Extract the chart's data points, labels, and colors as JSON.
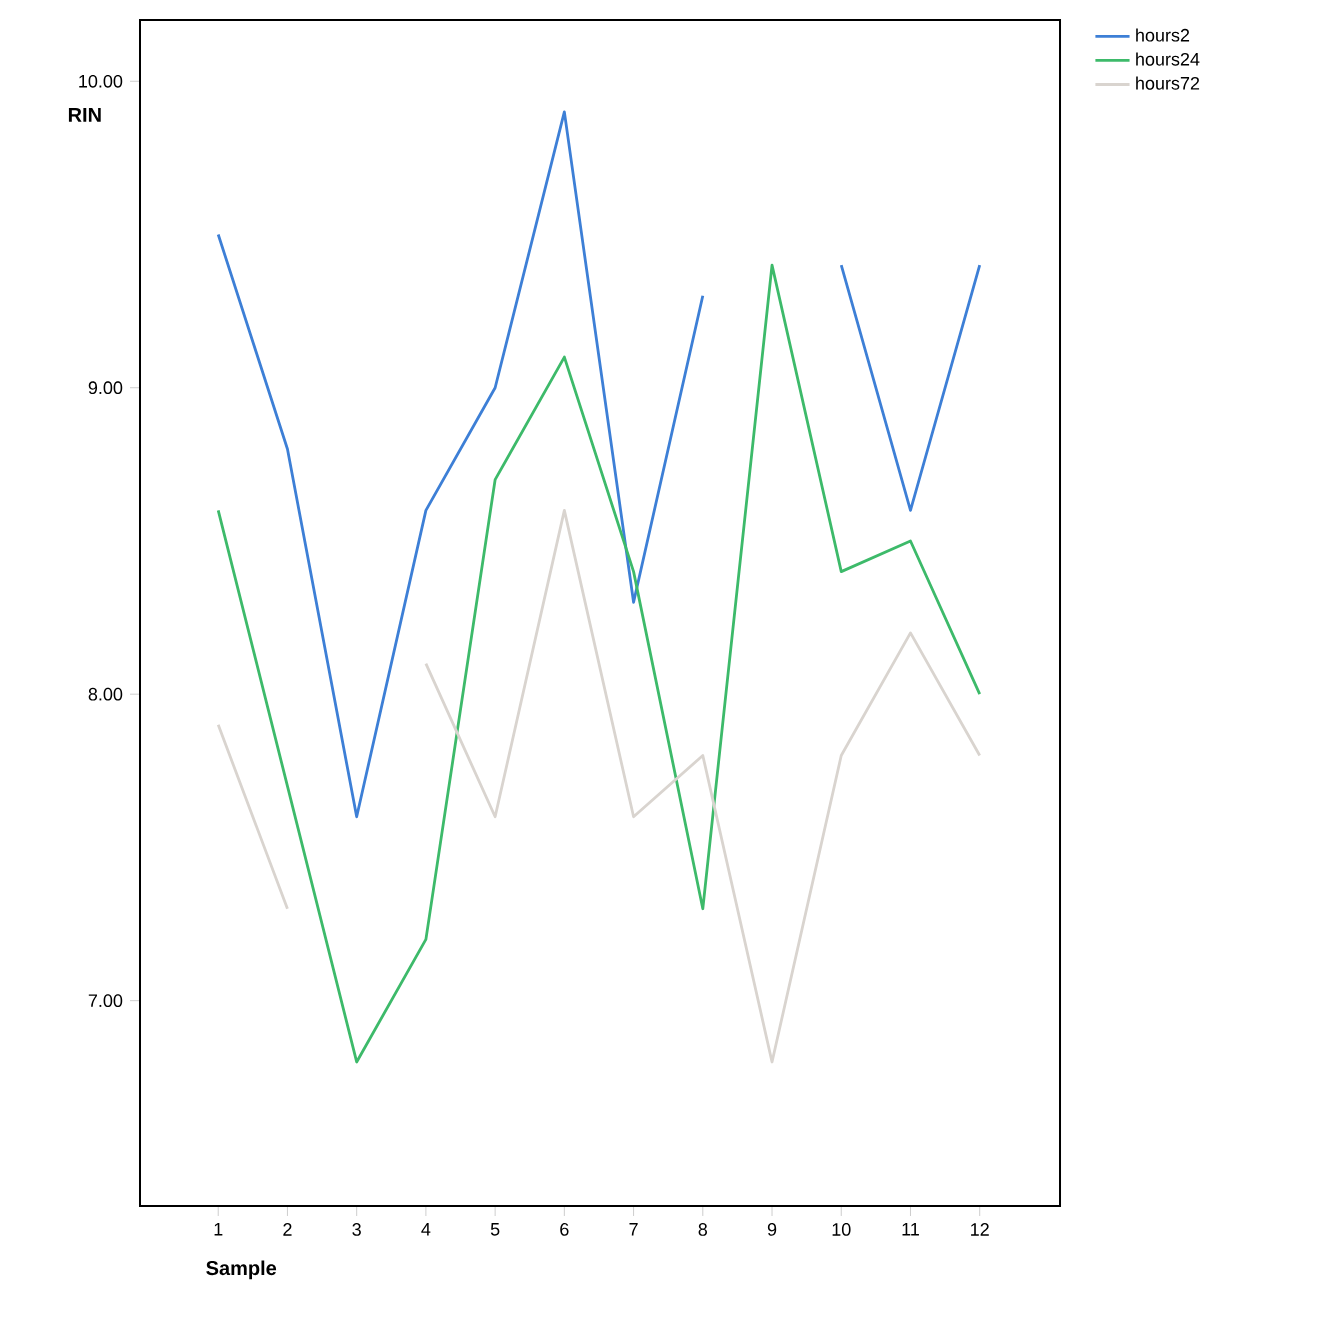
{
  "chart_data": {
    "type": "line",
    "xlabel": "Sample",
    "ylabel": "RIN",
    "categories": [
      "1",
      "2",
      "3",
      "4",
      "5",
      "6",
      "7",
      "8",
      "9",
      "10",
      "11",
      "12"
    ],
    "series": [
      {
        "name": "hours2",
        "color": "#3d7fd6",
        "values": [
          9.5,
          8.8,
          7.6,
          8.6,
          9.0,
          9.9,
          8.3,
          9.3,
          null,
          9.4,
          8.6,
          9.4
        ]
      },
      {
        "name": "hours24",
        "color": "#3dba6a",
        "values": [
          8.6,
          7.7,
          6.8,
          7.2,
          8.7,
          9.1,
          8.4,
          7.3,
          9.4,
          8.4,
          8.5,
          8.0
        ]
      },
      {
        "name": "hours72",
        "color": "#d9d4cf",
        "values": [
          7.9,
          7.3,
          null,
          8.1,
          7.6,
          8.6,
          7.6,
          7.8,
          6.8,
          7.8,
          8.2,
          7.8
        ]
      }
    ],
    "ylim": [
      6.33,
      10.2
    ],
    "yticks": [
      {
        "value": 7,
        "label": "7.00"
      },
      {
        "value": 8,
        "label": "8.00"
      },
      {
        "value": 9,
        "label": "9.00"
      },
      {
        "value": 10,
        "label": "10.00"
      }
    ],
    "grid": false,
    "legend": "top right",
    "marker": "none",
    "line_style": "solid"
  }
}
